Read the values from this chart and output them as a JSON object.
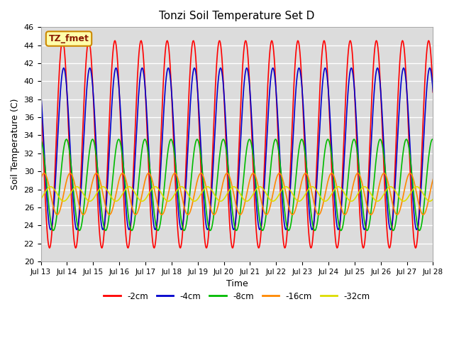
{
  "title": "Tonzi Soil Temperature Set D",
  "xlabel": "Time",
  "ylabel": "Soil Temperature (C)",
  "ylim": [
    20,
    46
  ],
  "xlim": [
    0,
    15
  ],
  "bg_color": "#dcdcdc",
  "fig_color": "#ffffff",
  "annotation_text": "TZ_fmet",
  "annotation_bg": "#ffffaa",
  "annotation_border": "#8b4513",
  "xtick_labels": [
    "Jul 13",
    "Jul 14",
    "Jul 15",
    "Jul 16",
    "Jul 17",
    "Jul 18",
    "Jul 19",
    "Jul 20",
    "Jul 21",
    "Jul 22",
    "Jul 23",
    "Jul 24",
    "Jul 25",
    "Jul 26",
    "Jul 27",
    "Jul 28"
  ],
  "legend": [
    "-2cm",
    "-4cm",
    "-8cm",
    "-16cm",
    "-32cm"
  ],
  "line_colors": [
    "#ff0000",
    "#0000cc",
    "#00bb00",
    "#ff8800",
    "#dddd00"
  ],
  "line_widths": [
    1.2,
    1.2,
    1.2,
    1.2,
    1.2
  ],
  "depths_cm": [
    2,
    4,
    8,
    16,
    32
  ],
  "n_days": 15,
  "base_temp": 33.0,
  "surface_amplitude": 11.5,
  "phase_shifts_hours": [
    0,
    1.0,
    3.5,
    7.0,
    13.0
  ],
  "amp_factors": [
    1.0,
    0.78,
    0.44,
    0.2,
    0.07
  ],
  "base_adjustments": [
    0.0,
    -0.5,
    -4.5,
    -5.5,
    -5.5
  ],
  "n_points_per_day": 48
}
